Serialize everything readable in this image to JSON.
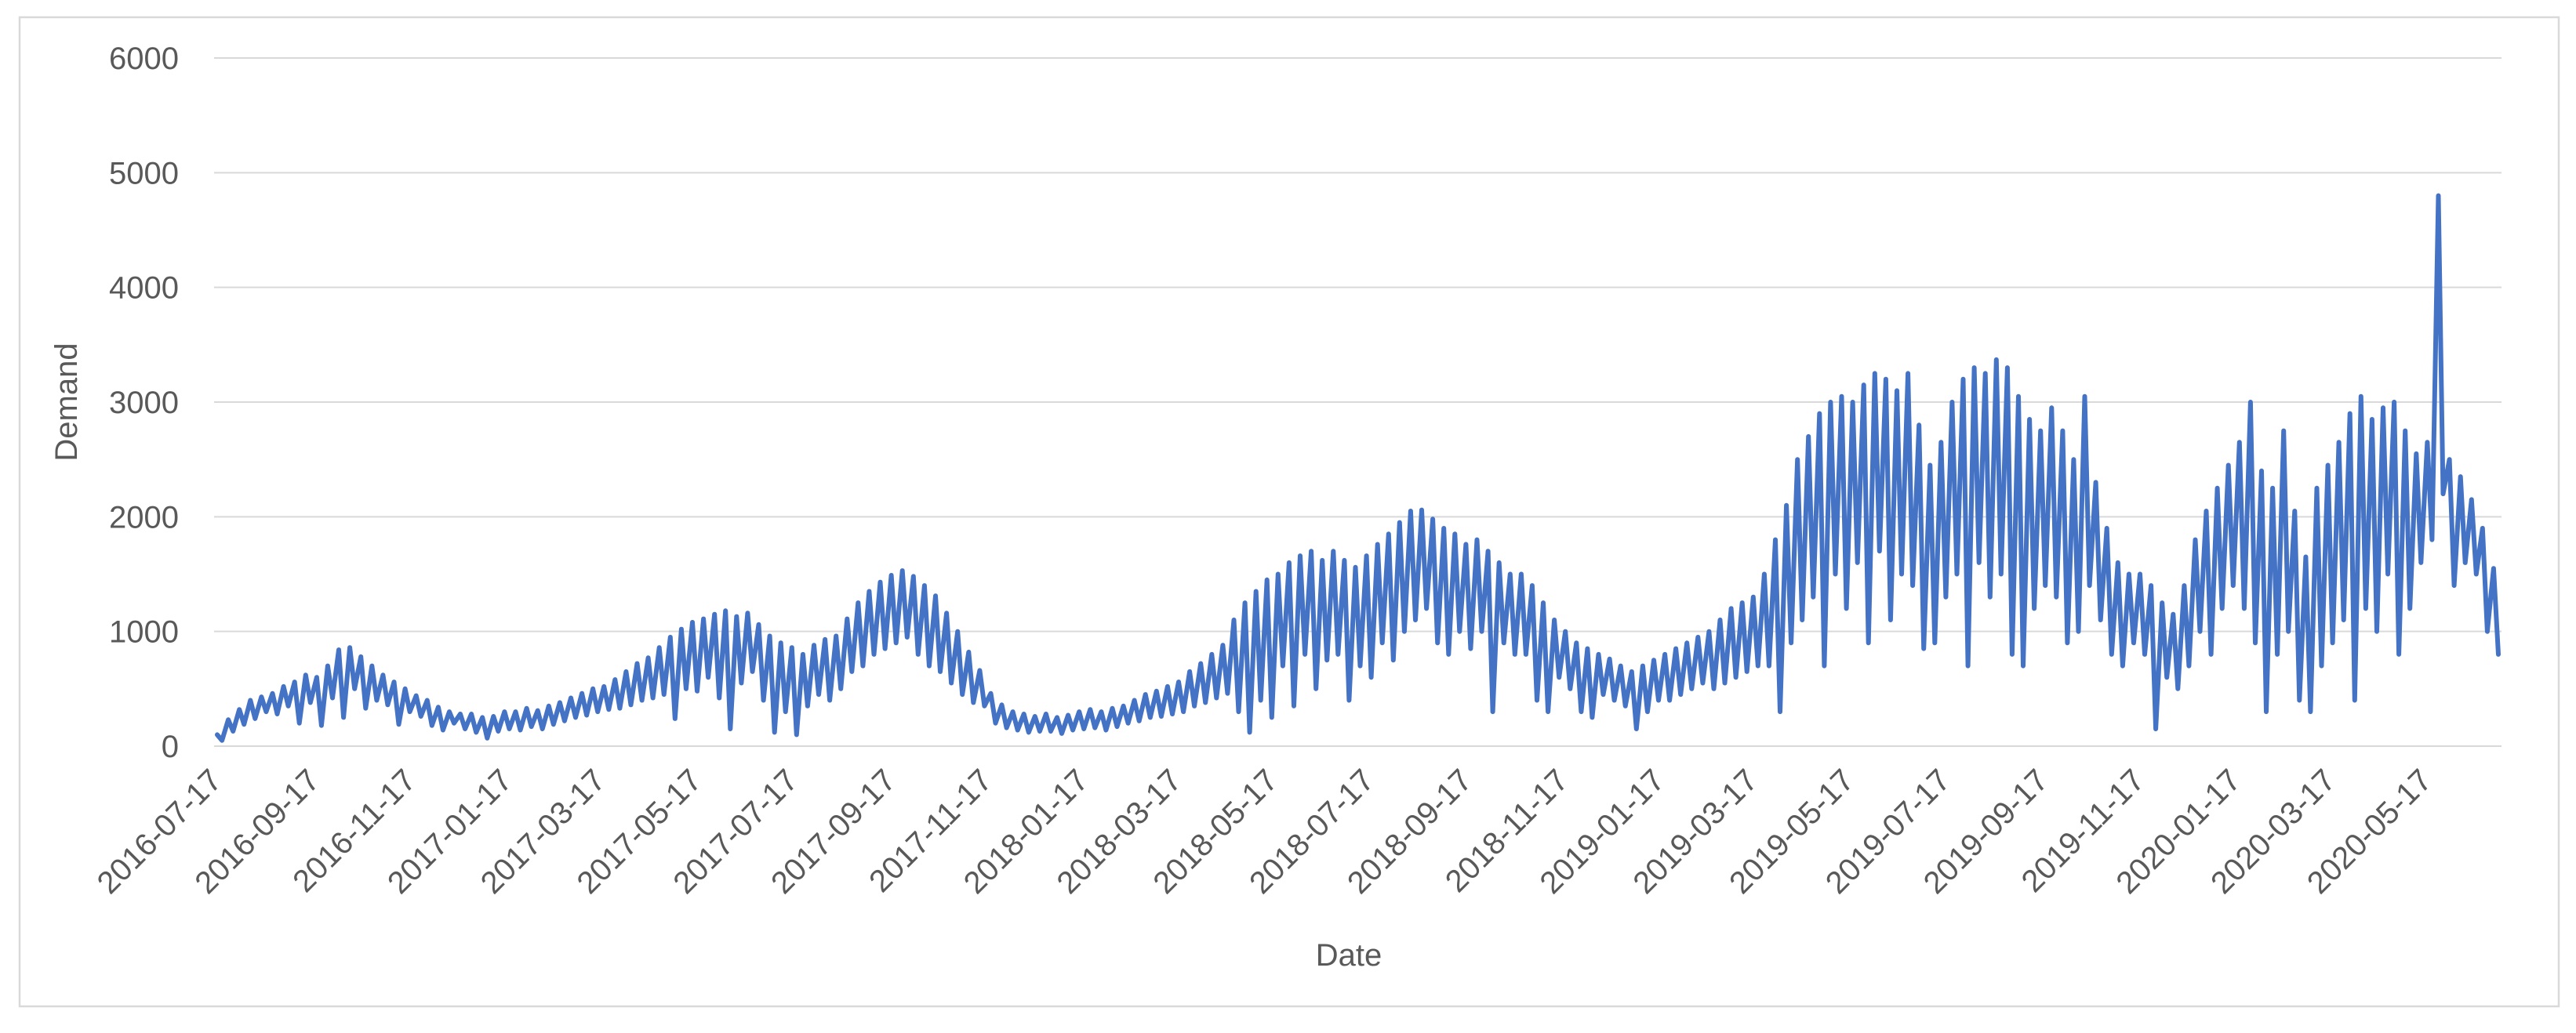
{
  "chart_data": {
    "type": "line",
    "title": "",
    "xlabel": "Date",
    "ylabel": "Demand",
    "series_name": "Demand",
    "line_color": "#4472C4",
    "grid_color": "#D9D9D9",
    "border_color": "#D9D9D9",
    "text_color": "#595959",
    "background_color": "#FFFFFF",
    "ylim": [
      0,
      6000
    ],
    "y_ticks": [
      0,
      1000,
      2000,
      3000,
      4000,
      5000,
      6000
    ],
    "grid": "horizontal",
    "legend": "none",
    "x_tick_labels": [
      "2016-07-17",
      "2016-09-17",
      "2016-11-17",
      "2017-01-17",
      "2017-03-17",
      "2017-05-17",
      "2017-07-17",
      "2017-09-17",
      "2017-11-17",
      "2018-01-17",
      "2018-03-17",
      "2018-05-17",
      "2018-07-17",
      "2018-09-17",
      "2018-11-17",
      "2019-01-17",
      "2019-03-17",
      "2019-05-17",
      "2019-07-17",
      "2019-09-17",
      "2019-11-17",
      "2020-01-17",
      "2020-03-17",
      "2020-05-17"
    ],
    "x_tick_day_offsets": [
      0,
      62,
      123,
      184,
      243,
      304,
      365,
      427,
      488,
      549,
      608,
      669,
      730,
      792,
      853,
      914,
      973,
      1034,
      1095,
      1157,
      1218,
      1279,
      1339,
      1400
    ],
    "start_date": "2016-07-17",
    "end_date_approx": "2020-07-05",
    "total_days": 1449,
    "sampling": "weekly_high_low_estimates",
    "weekly_high_low": [
      [
        100,
        50
      ],
      [
        230,
        130
      ],
      [
        320,
        190
      ],
      [
        400,
        240
      ],
      [
        430,
        300
      ],
      [
        460,
        280
      ],
      [
        520,
        350
      ],
      [
        560,
        200
      ],
      [
        620,
        380
      ],
      [
        600,
        180
      ],
      [
        700,
        420
      ],
      [
        840,
        250
      ],
      [
        860,
        500
      ],
      [
        780,
        330
      ],
      [
        700,
        400
      ],
      [
        620,
        360
      ],
      [
        560,
        190
      ],
      [
        500,
        300
      ],
      [
        440,
        260
      ],
      [
        400,
        180
      ],
      [
        340,
        140
      ],
      [
        300,
        200
      ],
      [
        280,
        150
      ],
      [
        280,
        120
      ],
      [
        250,
        70
      ],
      [
        260,
        130
      ],
      [
        300,
        150
      ],
      [
        300,
        140
      ],
      [
        330,
        170
      ],
      [
        310,
        150
      ],
      [
        350,
        190
      ],
      [
        380,
        220
      ],
      [
        420,
        250
      ],
      [
        460,
        270
      ],
      [
        500,
        300
      ],
      [
        520,
        320
      ],
      [
        580,
        330
      ],
      [
        650,
        360
      ],
      [
        720,
        400
      ],
      [
        770,
        420
      ],
      [
        860,
        450
      ],
      [
        950,
        240
      ],
      [
        1020,
        500
      ],
      [
        1080,
        480
      ],
      [
        1110,
        600
      ],
      [
        1150,
        420
      ],
      [
        1180,
        150
      ],
      [
        1130,
        550
      ],
      [
        1160,
        650
      ],
      [
        1060,
        400
      ],
      [
        960,
        120
      ],
      [
        900,
        300
      ],
      [
        860,
        100
      ],
      [
        800,
        350
      ],
      [
        880,
        450
      ],
      [
        930,
        400
      ],
      [
        960,
        500
      ],
      [
        1110,
        650
      ],
      [
        1250,
        700
      ],
      [
        1350,
        800
      ],
      [
        1430,
        850
      ],
      [
        1490,
        900
      ],
      [
        1530,
        950
      ],
      [
        1480,
        800
      ],
      [
        1400,
        700
      ],
      [
        1310,
        650
      ],
      [
        1160,
        550
      ],
      [
        1000,
        450
      ],
      [
        820,
        380
      ],
      [
        660,
        350
      ],
      [
        460,
        200
      ],
      [
        360,
        160
      ],
      [
        300,
        140
      ],
      [
        280,
        120
      ],
      [
        260,
        130
      ],
      [
        280,
        130
      ],
      [
        250,
        110
      ],
      [
        270,
        140
      ],
      [
        300,
        150
      ],
      [
        320,
        160
      ],
      [
        300,
        140
      ],
      [
        330,
        170
      ],
      [
        350,
        200
      ],
      [
        400,
        220
      ],
      [
        450,
        250
      ],
      [
        480,
        260
      ],
      [
        520,
        280
      ],
      [
        560,
        300
      ],
      [
        650,
        350
      ],
      [
        720,
        380
      ],
      [
        800,
        420
      ],
      [
        880,
        460
      ],
      [
        1100,
        300
      ],
      [
        1250,
        120
      ],
      [
        1350,
        400
      ],
      [
        1450,
        250
      ],
      [
        1500,
        700
      ],
      [
        1600,
        350
      ],
      [
        1660,
        800
      ],
      [
        1700,
        500
      ],
      [
        1620,
        750
      ],
      [
        1700,
        800
      ],
      [
        1620,
        400
      ],
      [
        1560,
        700
      ],
      [
        1660,
        600
      ],
      [
        1760,
        900
      ],
      [
        1850,
        750
      ],
      [
        1950,
        1000
      ],
      [
        2050,
        1100
      ],
      [
        2060,
        1200
      ],
      [
        1980,
        900
      ],
      [
        1900,
        800
      ],
      [
        1850,
        1000
      ],
      [
        1760,
        850
      ],
      [
        1800,
        1000
      ],
      [
        1700,
        300
      ],
      [
        1600,
        900
      ],
      [
        1500,
        800
      ],
      [
        1500,
        800
      ],
      [
        1400,
        400
      ],
      [
        1250,
        300
      ],
      [
        1100,
        600
      ],
      [
        1000,
        500
      ],
      [
        900,
        300
      ],
      [
        850,
        250
      ],
      [
        800,
        450
      ],
      [
        760,
        400
      ],
      [
        700,
        350
      ],
      [
        650,
        150
      ],
      [
        700,
        300
      ],
      [
        750,
        400
      ],
      [
        800,
        400
      ],
      [
        850,
        450
      ],
      [
        900,
        500
      ],
      [
        950,
        550
      ],
      [
        1000,
        500
      ],
      [
        1100,
        550
      ],
      [
        1200,
        600
      ],
      [
        1250,
        650
      ],
      [
        1300,
        700
      ],
      [
        1500,
        700
      ],
      [
        1800,
        300
      ],
      [
        2100,
        900
      ],
      [
        2500,
        1100
      ],
      [
        2700,
        1300
      ],
      [
        2900,
        700
      ],
      [
        3000,
        1500
      ],
      [
        3050,
        1200
      ],
      [
        3000,
        1600
      ],
      [
        3150,
        900
      ],
      [
        3250,
        1700
      ],
      [
        3200,
        1100
      ],
      [
        3100,
        1500
      ],
      [
        3250,
        1400
      ],
      [
        2800,
        850
      ],
      [
        2450,
        900
      ],
      [
        2650,
        1300
      ],
      [
        3000,
        1500
      ],
      [
        3200,
        700
      ],
      [
        3300,
        1600
      ],
      [
        3250,
        1300
      ],
      [
        3370,
        1500
      ],
      [
        3300,
        800
      ],
      [
        3050,
        700
      ],
      [
        2850,
        1200
      ],
      [
        2750,
        1400
      ],
      [
        2950,
        1300
      ],
      [
        2750,
        900
      ],
      [
        2500,
        1000
      ],
      [
        3050,
        1400
      ],
      [
        2300,
        1100
      ],
      [
        1900,
        800
      ],
      [
        1600,
        700
      ],
      [
        1500,
        900
      ],
      [
        1500,
        800
      ],
      [
        1400,
        150
      ],
      [
        1250,
        600
      ],
      [
        1150,
        500
      ],
      [
        1400,
        700
      ],
      [
        1800,
        1000
      ],
      [
        2050,
        800
      ],
      [
        2250,
        1200
      ],
      [
        2450,
        1400
      ],
      [
        2650,
        1200
      ],
      [
        3000,
        900
      ],
      [
        2400,
        300
      ],
      [
        2250,
        800
      ],
      [
        2750,
        1000
      ],
      [
        2050,
        400
      ],
      [
        1650,
        300
      ],
      [
        2250,
        700
      ],
      [
        2450,
        900
      ],
      [
        2650,
        1100
      ],
      [
        2900,
        400
      ],
      [
        3050,
        1200
      ],
      [
        2850,
        1000
      ],
      [
        2950,
        1500
      ],
      [
        3000,
        800
      ],
      [
        2750,
        1200
      ],
      [
        2550,
        1600
      ],
      [
        2650,
        1800
      ],
      [
        4800,
        2200
      ],
      [
        2500,
        1400
      ],
      [
        2350,
        1600
      ],
      [
        2150,
        1500
      ],
      [
        1900,
        1000
      ],
      [
        1550,
        800
      ]
    ]
  }
}
